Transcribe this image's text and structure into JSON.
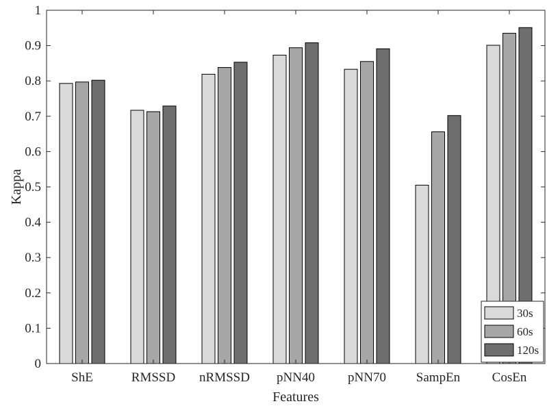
{
  "chart_data": {
    "type": "bar",
    "xlabel": "Features",
    "ylabel": "Kappa",
    "ylim": [
      0,
      1
    ],
    "yticks": [
      0,
      0.1,
      0.2,
      0.3,
      0.4,
      0.5,
      0.6,
      0.7,
      0.8,
      0.9,
      1
    ],
    "ytick_labels": [
      "0",
      "0.1",
      "0.2",
      "0.3",
      "0.4",
      "0.5",
      "0.6",
      "0.7",
      "0.8",
      "0.9",
      "1"
    ],
    "categories": [
      "ShE",
      "RMSSD",
      "nRMSSD",
      "pNN40",
      "pNN70",
      "SampEn",
      "CosEn"
    ],
    "series": [
      {
        "name": "30s",
        "color": "#d9d9d9",
        "values": [
          0.793,
          0.717,
          0.819,
          0.873,
          0.833,
          0.505,
          0.901
        ]
      },
      {
        "name": "60s",
        "color": "#a6a6a6",
        "values": [
          0.797,
          0.713,
          0.838,
          0.894,
          0.855,
          0.656,
          0.935
        ]
      },
      {
        "name": "120s",
        "color": "#6e6e6e",
        "values": [
          0.802,
          0.729,
          0.853,
          0.908,
          0.891,
          0.702,
          0.951
        ]
      }
    ],
    "grid": false,
    "legend_position": "bottom-right"
  }
}
